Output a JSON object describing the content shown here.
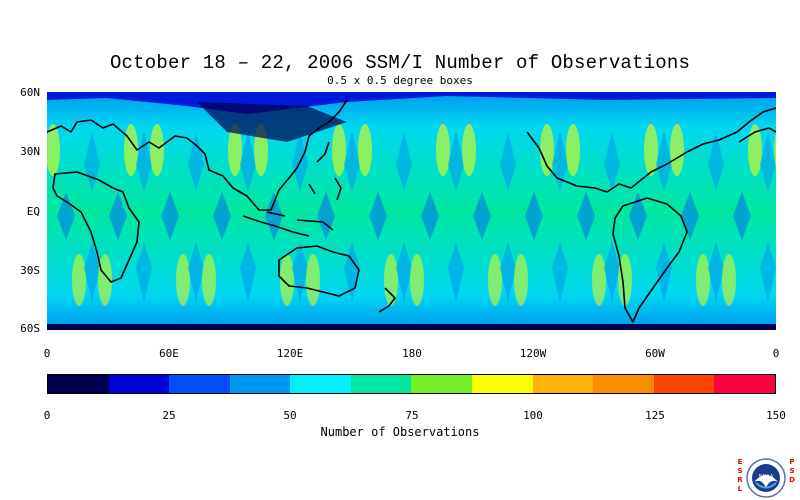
{
  "title": "October 18 – 22, 2006 SSM/I Number of Observations",
  "subtitle": "0.5 x 0.5 degree boxes",
  "lat_labels": [
    "60N",
    "30N",
    "EQ",
    "30S",
    "60S"
  ],
  "lon_labels": [
    "0",
    "60E",
    "120E",
    "180",
    "120W",
    "60W",
    "0"
  ],
  "colorbar": {
    "title": "Number of Observations",
    "tick_labels": [
      "0",
      "25",
      "50",
      "75",
      "100",
      "125",
      "150"
    ],
    "colors": [
      "#00004f",
      "#0000d8",
      "#0050ff",
      "#0098f0",
      "#00f0ff",
      "#00e8a0",
      "#78f028",
      "#ffff00",
      "#ffb400",
      "#ff8c00",
      "#ff4600",
      "#ff0040"
    ]
  },
  "logo": {
    "name": "noaa-logo",
    "left_text": "ESRL",
    "right_text": "PSD",
    "emblem_text": "NOAA"
  }
}
